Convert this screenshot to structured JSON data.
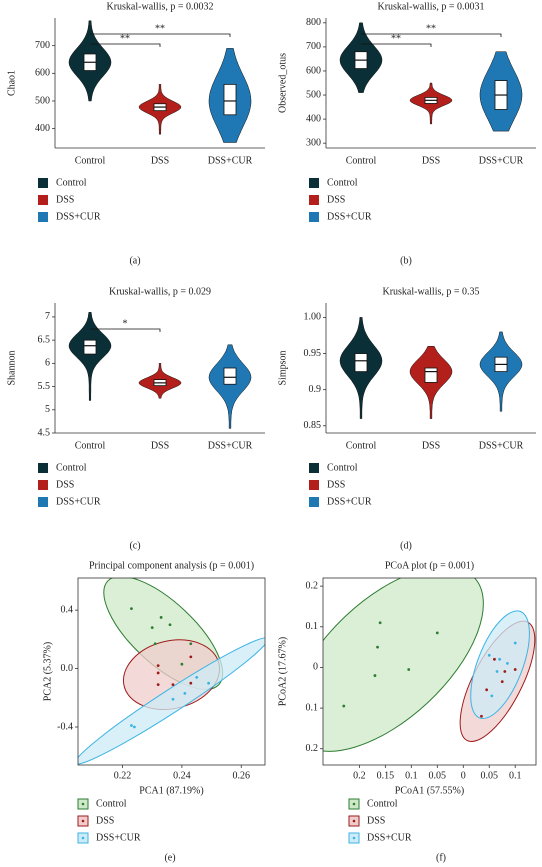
{
  "chart_data": [
    {
      "type": "violin",
      "panel_label": "(a)",
      "title": "Kruskal-wallis, p = 0.0032",
      "y_label": "Chao1",
      "categories": [
        "Control",
        "DSS",
        "DSS+CUR"
      ],
      "ylim": [
        330,
        800
      ],
      "yticks": [
        400,
        500,
        600,
        700
      ],
      "series": [
        {
          "name": "Control",
          "color": "#0b2f36",
          "stats": [
            500,
            610,
            640,
            670,
            790
          ]
        },
        {
          "name": "DSS",
          "color": "#b3201b",
          "stats": [
            380,
            465,
            478,
            490,
            560
          ]
        },
        {
          "name": "DSS+CUR",
          "color": "#1f78b4",
          "stats": [
            350,
            450,
            500,
            560,
            690
          ]
        }
      ],
      "annotations": [
        {
          "groups": [
            0,
            1
          ],
          "label": "**"
        },
        {
          "groups": [
            0,
            2
          ],
          "label": "**"
        }
      ]
    },
    {
      "type": "violin",
      "panel_label": "(b)",
      "title": "Kruskal-wallis, p = 0.0031",
      "y_label": "Observed_otus",
      "categories": [
        "Control",
        "DSS",
        "DSS+CUR"
      ],
      "ylim": [
        280,
        820
      ],
      "yticks": [
        300,
        400,
        500,
        600,
        700,
        800
      ],
      "series": [
        {
          "name": "Control",
          "color": "#0b2f36",
          "stats": [
            510,
            610,
            645,
            680,
            800
          ]
        },
        {
          "name": "DSS",
          "color": "#b3201b",
          "stats": [
            380,
            465,
            478,
            490,
            550
          ]
        },
        {
          "name": "DSS+CUR",
          "color": "#1f78b4",
          "stats": [
            350,
            440,
            500,
            560,
            680
          ]
        }
      ],
      "annotations": [
        {
          "groups": [
            0,
            1
          ],
          "label": "**"
        },
        {
          "groups": [
            0,
            2
          ],
          "label": "**"
        }
      ]
    },
    {
      "type": "violin",
      "panel_label": "(c)",
      "title": "Kruskal-wallis, p = 0.029",
      "y_label": "Shannon",
      "categories": [
        "Control",
        "DSS",
        "DSS+CUR"
      ],
      "ylim": [
        4.5,
        7.3
      ],
      "yticks": [
        4.5,
        5.0,
        5.5,
        6.0,
        6.5,
        7.0
      ],
      "series": [
        {
          "name": "Control",
          "color": "#0b2f36",
          "stats": [
            5.2,
            6.2,
            6.38,
            6.5,
            7.1
          ]
        },
        {
          "name": "DSS",
          "color": "#b3201b",
          "stats": [
            5.25,
            5.52,
            5.58,
            5.65,
            6.0
          ]
        },
        {
          "name": "DSS+CUR",
          "color": "#1f78b4",
          "stats": [
            4.6,
            5.55,
            5.7,
            5.9,
            6.4
          ]
        }
      ],
      "annotations": [
        {
          "groups": [
            0,
            1
          ],
          "label": "*"
        }
      ]
    },
    {
      "type": "violin",
      "panel_label": "(d)",
      "title": "Kruskal-wallis, p = 0.35",
      "y_label": "Simpson",
      "categories": [
        "Control",
        "DSS",
        "DSS+CUR"
      ],
      "ylim": [
        0.84,
        1.02
      ],
      "yticks": [
        0.85,
        0.9,
        0.95,
        {
          "value": 1,
          "label": "1.00"
        }
      ],
      "series": [
        {
          "name": "Control",
          "color": "#0b2f36",
          "stats": [
            0.86,
            0.925,
            0.94,
            0.95,
            1.0
          ]
        },
        {
          "name": "DSS",
          "color": "#b3201b",
          "stats": [
            0.86,
            0.91,
            0.925,
            0.93,
            0.96
          ]
        },
        {
          "name": "DSS+CUR",
          "color": "#1f78b4",
          "stats": [
            0.87,
            0.925,
            0.935,
            0.945,
            0.98
          ]
        }
      ],
      "annotations": []
    },
    {
      "type": "scatter",
      "panel_label": "(e)",
      "title": "Principal component analysis (p = 0.001)",
      "x_label": "PCA1 (87.19%)",
      "y_label": "PCA2 (5.37%)",
      "xlim": [
        0.205,
        0.268
      ],
      "xticks": [
        0.22,
        0.24,
        0.26
      ],
      "ylim": [
        -0.66,
        0.62
      ],
      "yticks": [
        -0.4,
        {
          "value": 0,
          "label": "0.0"
        },
        0.4
      ],
      "series": [
        {
          "name": "Control",
          "color": "#2e7d32",
          "fill": "#cfe8c8",
          "x": [
            0.223,
            0.233,
            0.236,
            0.23,
            0.231,
            0.243,
            0.24
          ],
          "y": [
            0.41,
            0.35,
            0.3,
            0.28,
            0.17,
            0.17,
            0.03
          ]
        },
        {
          "name": "DSS",
          "color": "#9e1b1b",
          "fill": "#f0cccc",
          "x": [
            0.232,
            0.243,
            0.232,
            0.237,
            0.232,
            0.243
          ],
          "y": [
            0.02,
            0.08,
            -0.03,
            -0.11,
            -0.11,
            -0.1
          ]
        },
        {
          "name": "DSS+CUR",
          "color": "#3bb4e5",
          "fill": "#cdebf7",
          "x": [
            0.249,
            0.241,
            0.237,
            0.223,
            0.224,
            0.245
          ],
          "y": [
            -0.1,
            -0.17,
            -0.21,
            -0.39,
            -0.4,
            -0.06
          ]
        }
      ]
    },
    {
      "type": "scatter",
      "panel_label": "(f)",
      "title": "PCoA plot (p = 0.001)",
      "x_label": "PCoA1 (57.55%)",
      "y_label": "PCoA2 (17.67%)",
      "xlim": [
        -0.27,
        0.14
      ],
      "xticks": [
        {
          "value": -0.2,
          "label": "0.2"
        },
        {
          "value": -0.15,
          "label": "0.15"
        },
        {
          "value": -0.1,
          "label": "0.1"
        },
        {
          "value": -0.05,
          "label": "0.05"
        },
        0,
        0.05,
        0.1
      ],
      "ylim": [
        -0.24,
        0.22
      ],
      "yticks": [
        {
          "value": -0.2,
          "label": "0.2"
        },
        {
          "value": -0.1,
          "label": "0.1"
        },
        0,
        0.1,
        0.2
      ],
      "series": [
        {
          "name": "Control",
          "color": "#2e7d32",
          "fill": "#cfe8c8",
          "x": [
            -0.16,
            -0.165,
            -0.05,
            -0.17,
            -0.105,
            -0.23
          ],
          "y": [
            0.11,
            0.05,
            0.085,
            -0.02,
            -0.005,
            -0.095
          ]
        },
        {
          "name": "DSS",
          "color": "#9e1b1b",
          "fill": "#f0cccc",
          "x": [
            0.06,
            0.08,
            0.1,
            0.045,
            0.075,
            0.035
          ],
          "y": [
            0.02,
            -0.01,
            -0.005,
            -0.055,
            -0.035,
            -0.12
          ]
        },
        {
          "name": "DSS+CUR",
          "color": "#3bb4e5",
          "fill": "#cdebf7",
          "x": [
            0.05,
            0.1,
            0.065,
            0.085,
            0.055,
            0.07
          ],
          "y": [
            0.03,
            0.06,
            -0.01,
            0.01,
            -0.07,
            0.02
          ]
        }
      ]
    }
  ]
}
